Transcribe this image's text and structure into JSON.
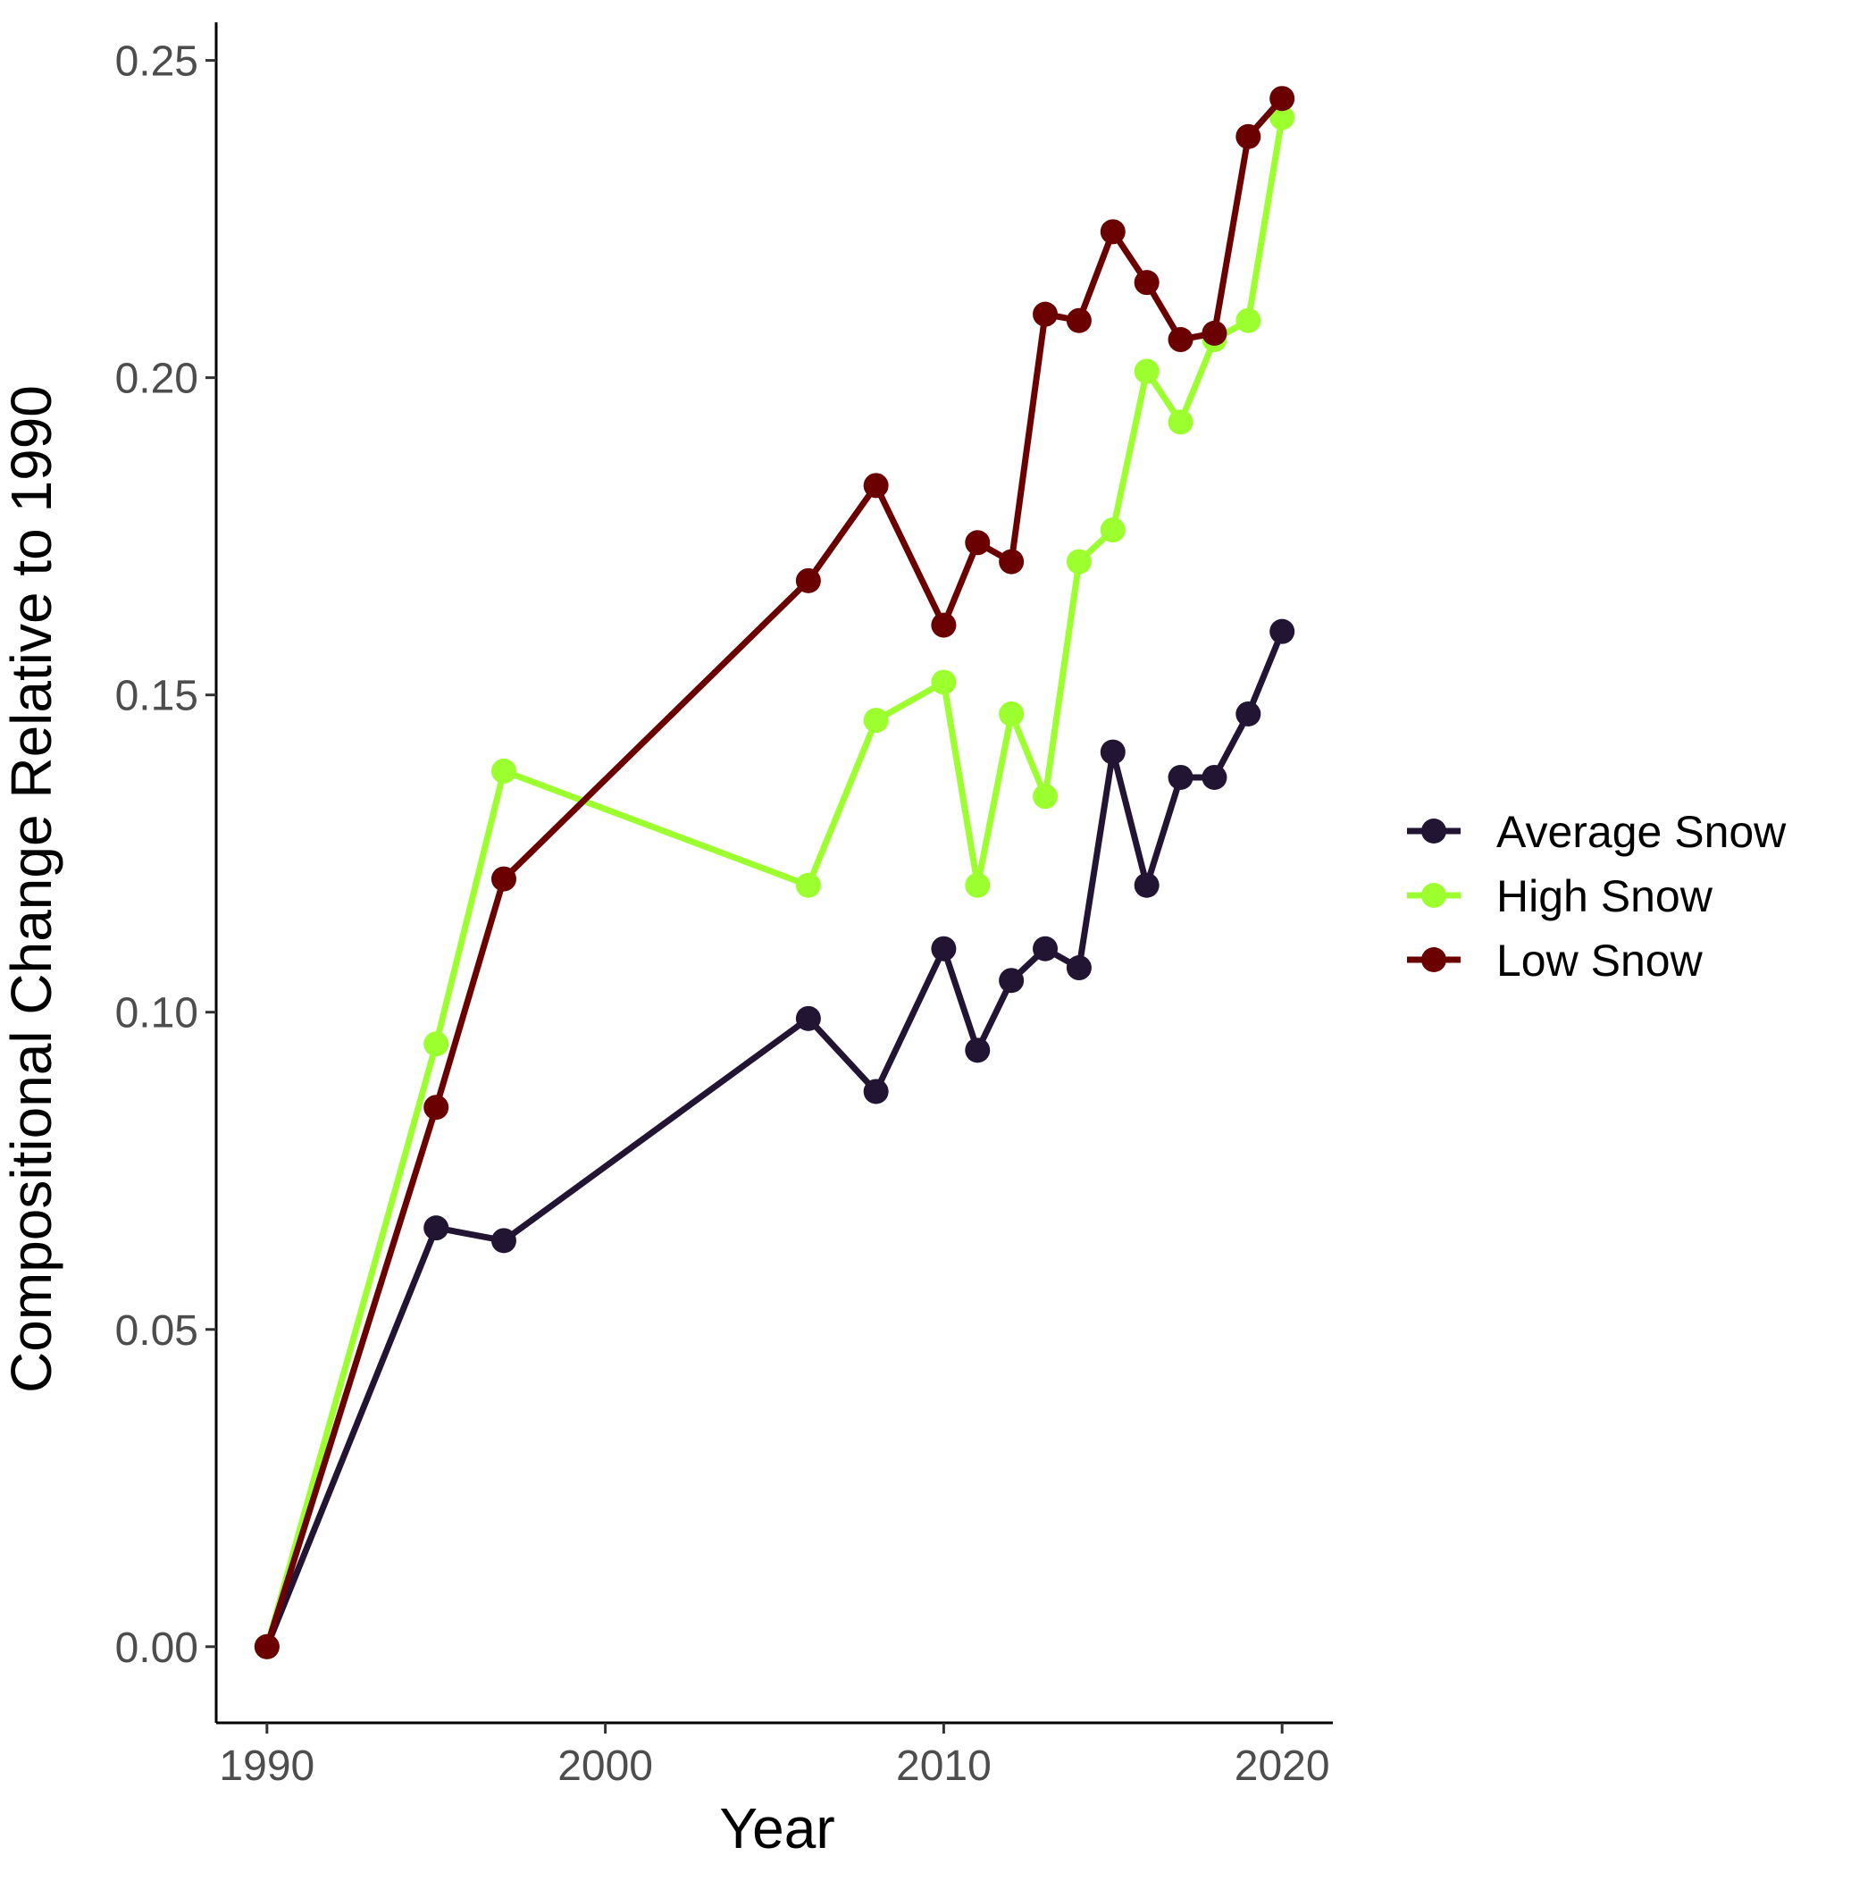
{
  "chart_data": {
    "type": "line",
    "xlabel": "Year",
    "ylabel": "Compositional Change Relative to 1990",
    "xlim": [
      1988.5,
      2021.5
    ],
    "ylim": [
      -0.012,
      0.256
    ],
    "x_ticks": [
      1990,
      2000,
      2010,
      2020
    ],
    "x_tick_labels": [
      "1990",
      "2000",
      "2010",
      "2020"
    ],
    "y_ticks": [
      0.0,
      0.05,
      0.1,
      0.15,
      0.2,
      0.25
    ],
    "y_tick_labels": [
      "0.00",
      "0.05",
      "0.10",
      "0.15",
      "0.20",
      "0.25"
    ],
    "grid": false,
    "legend_position": "right",
    "x": [
      1990,
      1995,
      1997,
      2006,
      2008,
      2010,
      2011,
      2012,
      2013,
      2014,
      2015,
      2016,
      2017,
      2018,
      2019,
      2020
    ],
    "series": [
      {
        "name": "Average Snow",
        "color": "#221433",
        "values": [
          0.0,
          0.066,
          0.064,
          0.099,
          0.0875,
          0.11,
          0.094,
          0.105,
          0.11,
          0.107,
          0.141,
          0.12,
          0.137,
          0.137,
          0.147,
          0.16
        ]
      },
      {
        "name": "High Snow",
        "color": "#9CFF2E",
        "values": [
          0.0,
          0.095,
          0.138,
          0.12,
          0.146,
          0.152,
          0.12,
          0.147,
          0.134,
          0.171,
          0.176,
          0.201,
          0.193,
          0.206,
          0.209,
          0.241
        ]
      },
      {
        "name": "Low Snow",
        "color": "#6A0000",
        "values": [
          0.0,
          0.085,
          0.121,
          0.168,
          0.183,
          0.161,
          0.174,
          0.171,
          0.21,
          0.209,
          0.223,
          0.215,
          0.206,
          0.207,
          0.238,
          0.244
        ]
      }
    ]
  }
}
